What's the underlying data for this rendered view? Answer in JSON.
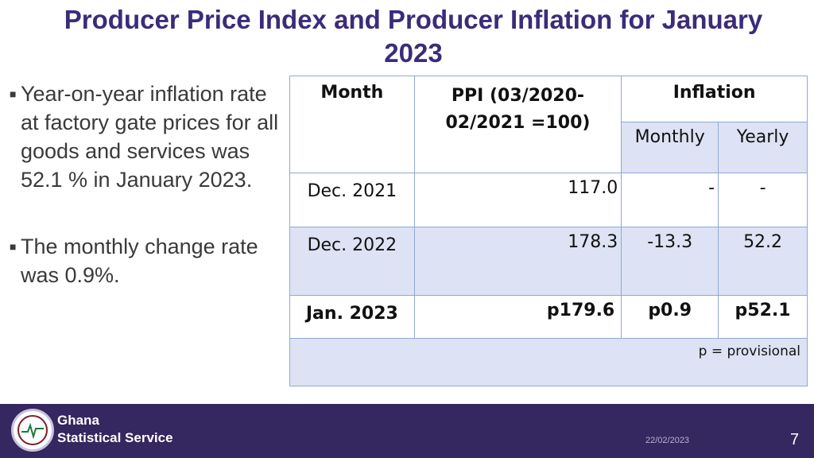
{
  "title": "Producer Price Index and Producer Inflation for January 2023",
  "bullets": [
    "Year-on-year inflation rate at factory gate prices for all goods and services was 52.1 % in January 2023.",
    "The monthly change rate was 0.9%."
  ],
  "table": {
    "headers": {
      "month": "Month",
      "ppi": "PPI (03/2020-02/2021 =100)",
      "inflation": "Inflation",
      "monthly": "Monthly",
      "yearly": "Yearly"
    },
    "rows": [
      {
        "month": "Dec. 2021",
        "ppi": "117.0",
        "monthly": "-",
        "yearly": "-"
      },
      {
        "month": "Dec. 2022",
        "ppi": "178.3",
        "monthly": "-13.3",
        "yearly": "52.2"
      },
      {
        "month": "Jan. 2023",
        "ppi": "p179.6",
        "monthly": "p0.9",
        "yearly": "p52.1"
      }
    ],
    "note": "p = provisional"
  },
  "footer": {
    "org_line1": "Ghana",
    "org_line2": "Statistical Service",
    "date": "22/02/2023",
    "page": "7"
  },
  "colors": {
    "title": "#3b2c7a",
    "footer_bg": "#35275f",
    "row_shade": "#dde3f4",
    "border": "#8fa7d6"
  },
  "icons": {
    "bullet": "square-bullet-icon",
    "logo": "gss-logo-icon"
  }
}
